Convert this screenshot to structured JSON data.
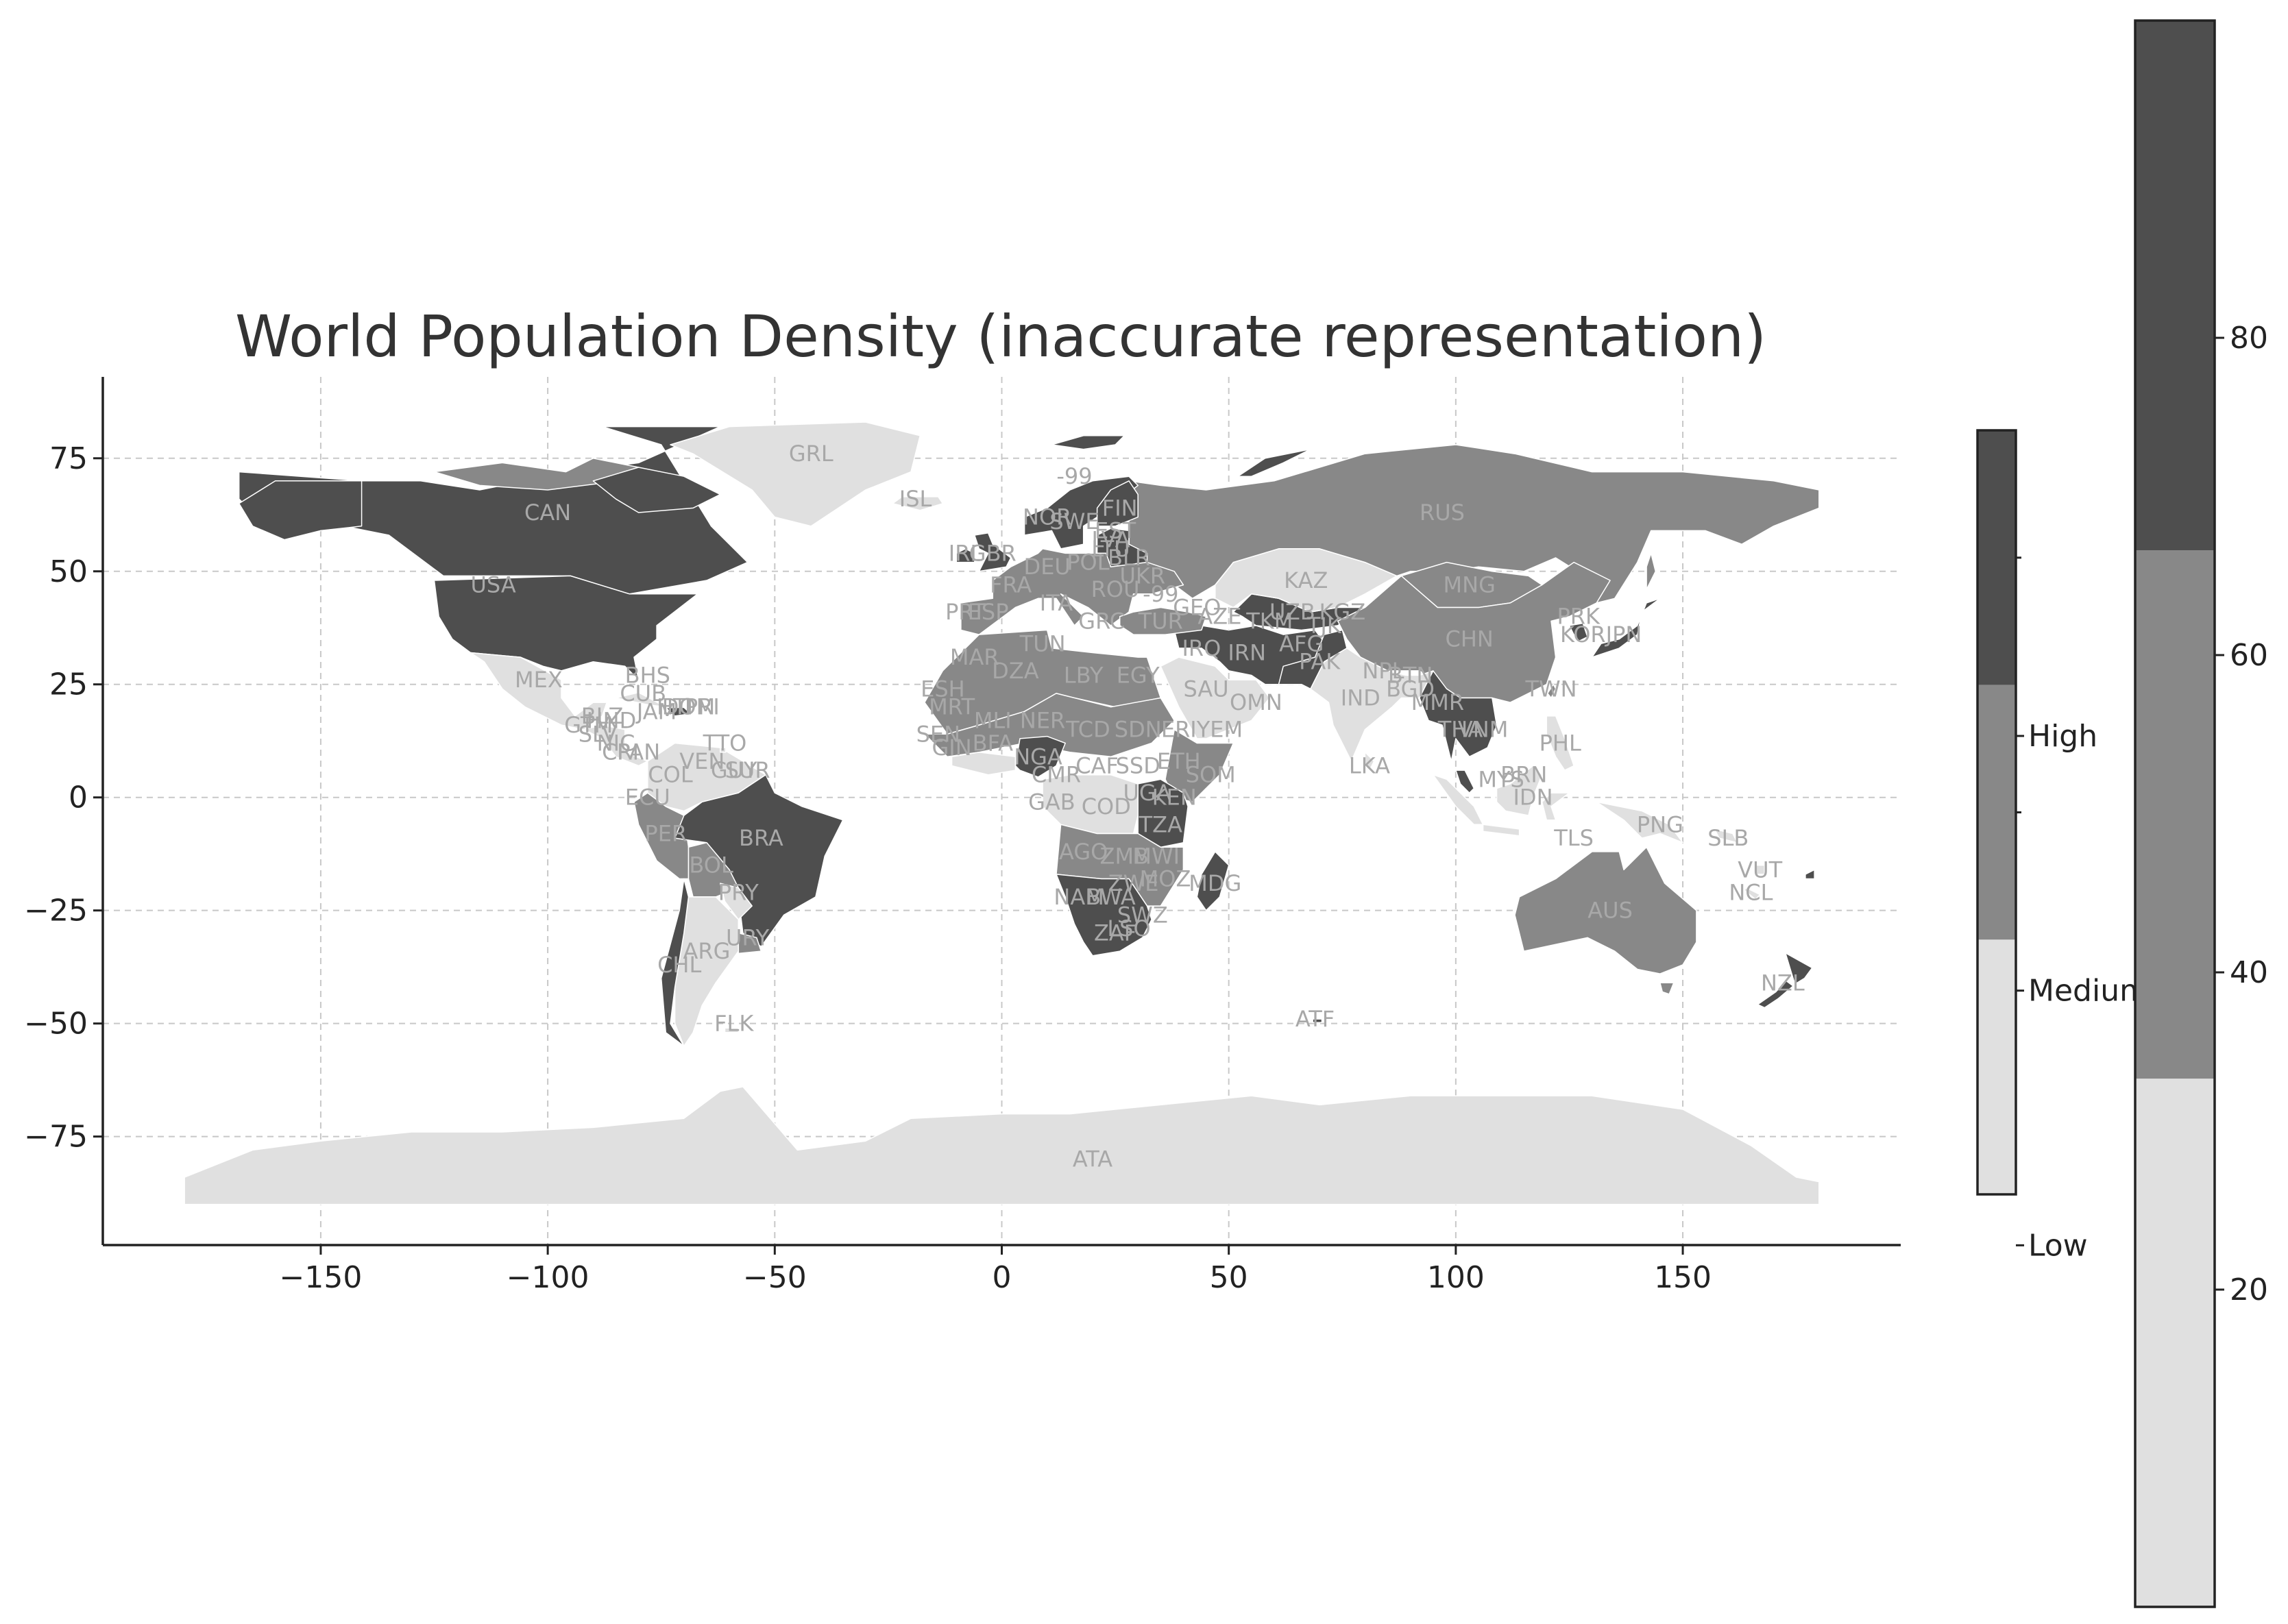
{
  "title": "World Population Density (inaccurate representation)",
  "colors": {
    "low": "#e0e0e0",
    "medium": "#888888",
    "high": "#4e4e4e",
    "grid": "#c8c8c8",
    "label": "#a8a8a8"
  },
  "chart_data": {
    "type": "choropleth-map",
    "title": "World Population Density (inaccurate representation)",
    "xlabel": "",
    "ylabel": "",
    "xlim": [
      -198,
      198
    ],
    "ylim": [
      -99,
      93
    ],
    "xticks": [
      -150,
      -100,
      -50,
      0,
      50,
      100,
      150
    ],
    "yticks": [
      75,
      50,
      25,
      0,
      -25,
      -50,
      -75
    ],
    "grid": true,
    "categorical_legend": {
      "placement": "right",
      "labels": [
        "High",
        "Medium",
        "Low"
      ]
    },
    "continuous_colorbar": {
      "placement": "far-right",
      "range": [
        0,
        100
      ],
      "ticks": [
        80,
        60,
        40,
        20
      ],
      "bands": [
        {
          "from": 0,
          "to": 33.3,
          "category": "low"
        },
        {
          "from": 33.3,
          "to": 66.6,
          "category": "medium"
        },
        {
          "from": 66.6,
          "to": 100,
          "category": "high"
        }
      ]
    },
    "countries": [
      {
        "code": "GRL",
        "lon": -42,
        "lat": 76,
        "category": "low"
      },
      {
        "code": "ISL",
        "lon": -19,
        "lat": 66,
        "category": "low"
      },
      {
        "code": "CAN",
        "lon": -100,
        "lat": 63,
        "category": "high"
      },
      {
        "code": "USA",
        "lon": -112,
        "lat": 47,
        "category": "high"
      },
      {
        "code": "MEX",
        "lon": -102,
        "lat": 26,
        "category": "low"
      },
      {
        "code": "BHS",
        "lon": -78,
        "lat": 27,
        "category": "low"
      },
      {
        "code": "CUB",
        "lon": -79,
        "lat": 23,
        "category": "low"
      },
      {
        "code": "JAM",
        "lon": -76,
        "lat": 19,
        "category": "low"
      },
      {
        "code": "HTI",
        "lon": -72,
        "lat": 20,
        "category": "low"
      },
      {
        "code": "DOM",
        "lon": -69,
        "lat": 20,
        "category": "low"
      },
      {
        "code": "PRI",
        "lon": -66,
        "lat": 20,
        "category": "low"
      },
      {
        "code": "BLZ",
        "lon": -88,
        "lat": 18,
        "category": "low"
      },
      {
        "code": "GTM",
        "lon": -91,
        "lat": 16,
        "category": "low"
      },
      {
        "code": "HND",
        "lon": -86,
        "lat": 17,
        "category": "low"
      },
      {
        "code": "SLV",
        "lon": -89,
        "lat": 14,
        "category": "low"
      },
      {
        "code": "NIC",
        "lon": -85,
        "lat": 12,
        "category": "low"
      },
      {
        "code": "CRI",
        "lon": -84,
        "lat": 10,
        "category": "low"
      },
      {
        "code": "PAN",
        "lon": -80,
        "lat": 10,
        "category": "low"
      },
      {
        "code": "TTO",
        "lon": -61,
        "lat": 12,
        "category": "low"
      },
      {
        "code": "VEN",
        "lon": -66,
        "lat": 8,
        "category": "low"
      },
      {
        "code": "COL",
        "lon": -73,
        "lat": 5,
        "category": "low"
      },
      {
        "code": "GUY",
        "lon": -59,
        "lat": 6,
        "category": "low"
      },
      {
        "code": "SUR",
        "lon": -56,
        "lat": 6,
        "category": "medium"
      },
      {
        "code": "ECU",
        "lon": -78,
        "lat": 0,
        "category": "medium"
      },
      {
        "code": "PER",
        "lon": -74,
        "lat": -8,
        "category": "medium"
      },
      {
        "code": "BRA",
        "lon": -53,
        "lat": -9,
        "category": "high"
      },
      {
        "code": "BOL",
        "lon": -64,
        "lat": -15,
        "category": "medium"
      },
      {
        "code": "PRY",
        "lon": -58,
        "lat": -21,
        "category": "low"
      },
      {
        "code": "URY",
        "lon": -56,
        "lat": -31,
        "category": "medium"
      },
      {
        "code": "ARG",
        "lon": -65,
        "lat": -34,
        "category": "low"
      },
      {
        "code": "CHL",
        "lon": -71,
        "lat": -37,
        "category": "low"
      },
      {
        "code": "FLK",
        "lon": -59,
        "lat": -50,
        "category": "low"
      },
      {
        "code": "IRL",
        "lon": -8,
        "lat": 54,
        "category": "high"
      },
      {
        "code": "GBR",
        "lon": -2,
        "lat": 54,
        "category": "high"
      },
      {
        "code": "PRT",
        "lon": -8,
        "lat": 41,
        "category": "medium"
      },
      {
        "code": "ESP",
        "lon": -3,
        "lat": 41,
        "category": "medium"
      },
      {
        "code": "FRA",
        "lon": 2,
        "lat": 47,
        "category": "medium"
      },
      {
        "code": "NOR",
        "lon": 10,
        "lat": 62,
        "category": "high"
      },
      {
        "code": "SWE",
        "lon": 16,
        "lat": 61,
        "category": "high"
      },
      {
        "code": "FIN",
        "lon": 26,
        "lat": 64,
        "category": "high"
      },
      {
        "code": "EST",
        "lon": 25,
        "lat": 59,
        "category": "high"
      },
      {
        "code": "LVA",
        "lon": 24,
        "lat": 57,
        "category": "high"
      },
      {
        "code": "LTU",
        "lon": 24,
        "lat": 55,
        "category": "high"
      },
      {
        "code": "BLR",
        "lon": 28,
        "lat": 53,
        "category": "high"
      },
      {
        "code": "POL",
        "lon": 19,
        "lat": 52,
        "category": "medium"
      },
      {
        "code": "DEU",
        "lon": 10,
        "lat": 51,
        "category": "medium"
      },
      {
        "code": "UKR",
        "lon": 31,
        "lat": 49,
        "category": "medium"
      },
      {
        "code": "ROU",
        "lon": 25,
        "lat": 46,
        "category": "medium"
      },
      {
        "code": "ITA",
        "lon": 12,
        "lat": 43,
        "category": "medium"
      },
      {
        "code": "GRC",
        "lon": 22,
        "lat": 39,
        "category": "medium"
      },
      {
        "code": "TUR",
        "lon": 35,
        "lat": 39,
        "category": "medium"
      },
      {
        "code": "GEO",
        "lon": 43,
        "lat": 42,
        "category": "medium"
      },
      {
        "code": "AZE",
        "lon": 48,
        "lat": 40,
        "category": "medium"
      },
      {
        "code": "RUS",
        "lon": 97,
        "lat": 63,
        "category": "medium"
      },
      {
        "code": "KAZ",
        "lon": 67,
        "lat": 48,
        "category": "low"
      },
      {
        "code": "UZB",
        "lon": 64,
        "lat": 41,
        "category": "high"
      },
      {
        "code": "TKM",
        "lon": 59,
        "lat": 39,
        "category": "high"
      },
      {
        "code": "KGZ",
        "lon": 75,
        "lat": 41,
        "category": "high"
      },
      {
        "code": "TJK",
        "lon": 71,
        "lat": 38,
        "category": "medium"
      },
      {
        "code": "MNG",
        "lon": 103,
        "lat": 47,
        "category": "medium"
      },
      {
        "code": "CHN",
        "lon": 103,
        "lat": 35,
        "category": "medium"
      },
      {
        "code": "PRK",
        "lon": 127,
        "lat": 40,
        "category": "high"
      },
      {
        "code": "KOR",
        "lon": 128,
        "lat": 36,
        "category": "high"
      },
      {
        "code": "JPN",
        "lon": 137,
        "lat": 36,
        "category": "high"
      },
      {
        "code": "TWN",
        "lon": 121,
        "lat": 24,
        "category": "medium"
      },
      {
        "code": "MAR",
        "lon": -6,
        "lat": 31,
        "category": "medium"
      },
      {
        "code": "DZA",
        "lon": 3,
        "lat": 28,
        "category": "medium"
      },
      {
        "code": "TUN",
        "lon": 9,
        "lat": 34,
        "category": "medium"
      },
      {
        "code": "LBY",
        "lon": 18,
        "lat": 27,
        "category": "medium"
      },
      {
        "code": "EGY",
        "lon": 30,
        "lat": 27,
        "category": "medium"
      },
      {
        "code": "ESH",
        "lon": -13,
        "lat": 24,
        "category": "medium"
      },
      {
        "code": "MRT",
        "lon": -11,
        "lat": 20,
        "category": "medium"
      },
      {
        "code": "MLI",
        "lon": -2,
        "lat": 17,
        "category": "medium"
      },
      {
        "code": "NER",
        "lon": 9,
        "lat": 17,
        "category": "medium"
      },
      {
        "code": "TCD",
        "lon": 19,
        "lat": 15,
        "category": "medium"
      },
      {
        "code": "SDN",
        "lon": 30,
        "lat": 15,
        "category": "medium"
      },
      {
        "code": "ERI",
        "lon": 39,
        "lat": 15,
        "category": "medium"
      },
      {
        "code": "YEM",
        "lon": 48,
        "lat": 15,
        "category": "low"
      },
      {
        "code": "SAU",
        "lon": 45,
        "lat": 24,
        "category": "low"
      },
      {
        "code": "OMN",
        "lon": 56,
        "lat": 21,
        "category": "low"
      },
      {
        "code": "IRQ",
        "lon": 44,
        "lat": 33,
        "category": "high"
      },
      {
        "code": "IRN",
        "lon": 54,
        "lat": 32,
        "category": "high"
      },
      {
        "code": "AFG",
        "lon": 66,
        "lat": 34,
        "category": "high"
      },
      {
        "code": "PAK",
        "lon": 70,
        "lat": 30,
        "category": "high"
      },
      {
        "code": "IND",
        "lon": 79,
        "lat": 22,
        "category": "low"
      },
      {
        "code": "NPL",
        "lon": 84,
        "lat": 28,
        "category": "low"
      },
      {
        "code": "BTN",
        "lon": 90,
        "lat": 27,
        "category": "low"
      },
      {
        "code": "BGD",
        "lon": 90,
        "lat": 24,
        "category": "low"
      },
      {
        "code": "LKA",
        "lon": 81,
        "lat": 7,
        "category": "low"
      },
      {
        "code": "MMR",
        "lon": 96,
        "lat": 21,
        "category": "high"
      },
      {
        "code": "THA",
        "lon": 101,
        "lat": 15,
        "category": "high"
      },
      {
        "code": "VNM",
        "lon": 106,
        "lat": 15,
        "category": "high"
      },
      {
        "code": "PHL",
        "lon": 123,
        "lat": 12,
        "category": "low"
      },
      {
        "code": "MYS",
        "lon": 110,
        "lat": 4,
        "category": "high"
      },
      {
        "code": "BRN",
        "lon": 115,
        "lat": 5,
        "category": "high"
      },
      {
        "code": "IDN",
        "lon": 117,
        "lat": 0,
        "category": "low"
      },
      {
        "code": "TLS",
        "lon": 126,
        "lat": -9,
        "category": "low"
      },
      {
        "code": "PNG",
        "lon": 145,
        "lat": -6,
        "category": "low"
      },
      {
        "code": "SLB",
        "lon": 160,
        "lat": -9,
        "category": "low"
      },
      {
        "code": "VUT",
        "lon": 167,
        "lat": -16,
        "category": "low"
      },
      {
        "code": "NCL",
        "lon": 165,
        "lat": -21,
        "category": "low"
      },
      {
        "code": "AUS",
        "lon": 134,
        "lat": -25,
        "category": "medium"
      },
      {
        "code": "NZL",
        "lon": 172,
        "lat": -41,
        "category": "high"
      },
      {
        "code": "SEN",
        "lon": -14,
        "lat": 14,
        "category": "medium"
      },
      {
        "code": "GIN",
        "lon": -11,
        "lat": 11,
        "category": "medium"
      },
      {
        "code": "BFA",
        "lon": -2,
        "lat": 12,
        "category": "medium"
      },
      {
        "code": "NGA",
        "lon": 8,
        "lat": 9,
        "category": "high"
      },
      {
        "code": "CMR",
        "lon": 12,
        "lat": 5,
        "category": "medium"
      },
      {
        "code": "CAF",
        "lon": 21,
        "lat": 7,
        "category": "medium"
      },
      {
        "code": "SSD",
        "lon": 30,
        "lat": 7,
        "category": "medium"
      },
      {
        "code": "ETH",
        "lon": 39,
        "lat": 8,
        "category": "medium"
      },
      {
        "code": "SOM",
        "lon": 46,
        "lat": 5,
        "category": "medium"
      },
      {
        "code": "KEN",
        "lon": 38,
        "lat": 0,
        "category": "high"
      },
      {
        "code": "UGA",
        "lon": 32,
        "lat": 1,
        "category": "high"
      },
      {
        "code": "COD",
        "lon": 23,
        "lat": -2,
        "category": "low"
      },
      {
        "code": "GAB",
        "lon": 11,
        "lat": -1,
        "category": "low"
      },
      {
        "code": "TZA",
        "lon": 35,
        "lat": -6,
        "category": "high"
      },
      {
        "code": "AGO",
        "lon": 18,
        "lat": -12,
        "category": "medium"
      },
      {
        "code": "ZMB",
        "lon": 27,
        "lat": -13,
        "category": "medium"
      },
      {
        "code": "MWI",
        "lon": 34,
        "lat": -13,
        "category": "medium"
      },
      {
        "code": "MOZ",
        "lon": 36,
        "lat": -18,
        "category": "medium"
      },
      {
        "code": "ZWE",
        "lon": 29,
        "lat": -19,
        "category": "high"
      },
      {
        "code": "NAM",
        "lon": 17,
        "lat": -22,
        "category": "high"
      },
      {
        "code": "BWA",
        "lon": 24,
        "lat": -22,
        "category": "high"
      },
      {
        "code": "ZAF",
        "lon": 25,
        "lat": -30,
        "category": "high"
      },
      {
        "code": "SWZ",
        "lon": 31,
        "lat": -26,
        "category": "high"
      },
      {
        "code": "LSO",
        "lon": 28,
        "lat": -29,
        "category": "high"
      },
      {
        "code": "MDG",
        "lon": 47,
        "lat": -19,
        "category": "high"
      },
      {
        "code": "ATF",
        "lon": 69,
        "lat": -49,
        "category": "high"
      },
      {
        "code": "ATA",
        "lon": 20,
        "lat": -80,
        "category": "low"
      },
      {
        "code": "-99",
        "lon": 16,
        "lat": 71,
        "category": "high"
      },
      {
        "code": "-99",
        "lon": 35,
        "lat": 45,
        "category": "medium"
      }
    ]
  }
}
